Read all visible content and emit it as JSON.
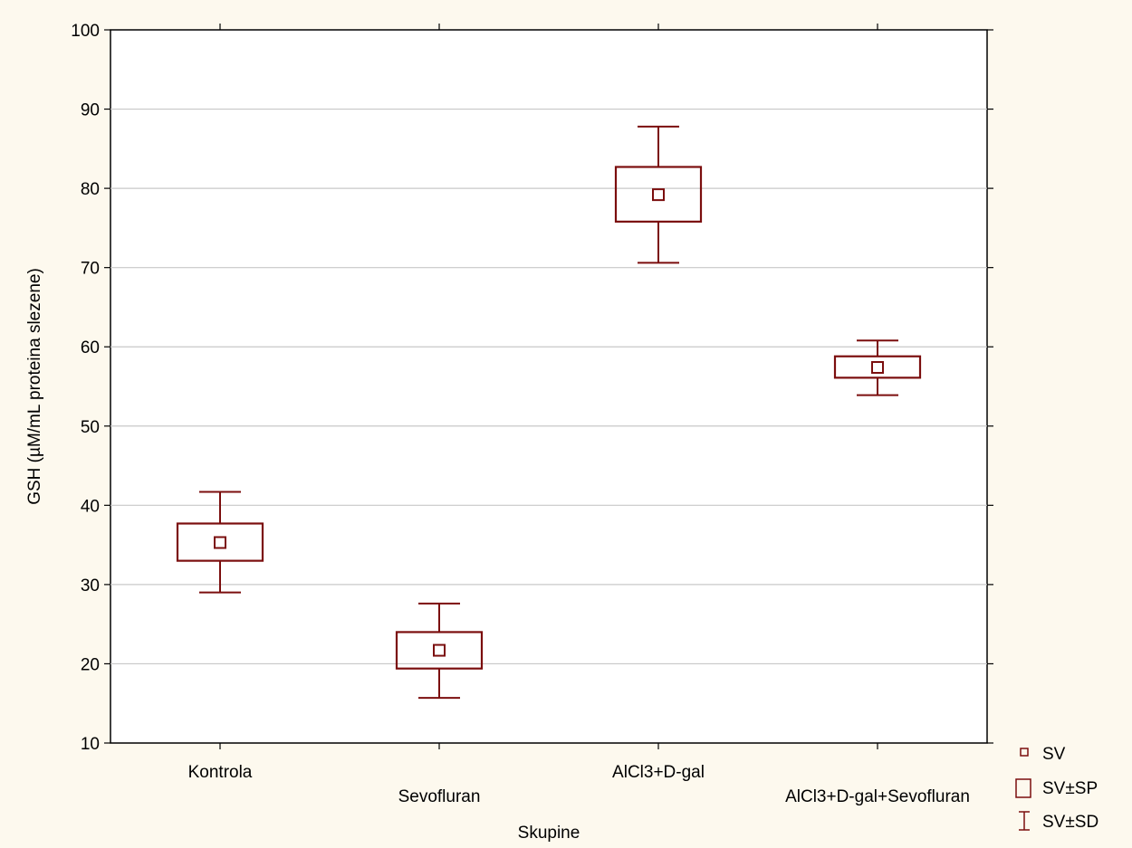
{
  "chart_data": {
    "type": "box",
    "xlabel": "Skupine",
    "ylabel": "GSH (µM/mL proteina  slezene)",
    "ylim": [
      10,
      100
    ],
    "yticks": [
      10,
      20,
      30,
      40,
      50,
      60,
      70,
      80,
      90,
      100
    ],
    "grid": true,
    "categories": [
      "Kontrola",
      "Sevofluran",
      "AlCl3+D-gal",
      "AlCl3+D-gal+Sevofluran"
    ],
    "series": [
      {
        "groups": [
          {
            "category": "Kontrola",
            "mean": 35.3,
            "se_low": 33.0,
            "se_high": 37.7,
            "sd_low": 29.0,
            "sd_high": 41.7
          },
          {
            "category": "Sevofluran",
            "mean": 21.7,
            "se_low": 19.4,
            "se_high": 24.0,
            "sd_low": 15.7,
            "sd_high": 27.6
          },
          {
            "category": "AlCl3+D-gal",
            "mean": 79.2,
            "se_low": 75.8,
            "se_high": 82.7,
            "sd_low": 70.6,
            "sd_high": 87.8
          },
          {
            "category": "AlCl3+D-gal+Sevofluran",
            "mean": 57.4,
            "se_low": 56.1,
            "se_high": 58.8,
            "sd_low": 53.9,
            "sd_high": 60.8
          }
        ]
      }
    ],
    "legend": {
      "position": "bottom-right",
      "items": [
        {
          "symbol": "mean-square-icon",
          "label": "SV"
        },
        {
          "symbol": "box-icon",
          "label": "SV±SP"
        },
        {
          "symbol": "whisker-icon",
          "label": "SV±SD"
        }
      ]
    },
    "colors": {
      "stroke": "#7b0e0e",
      "background": "#fdf9ee",
      "plot_area": "#ffffff",
      "grid": "#c8c8c8"
    }
  }
}
